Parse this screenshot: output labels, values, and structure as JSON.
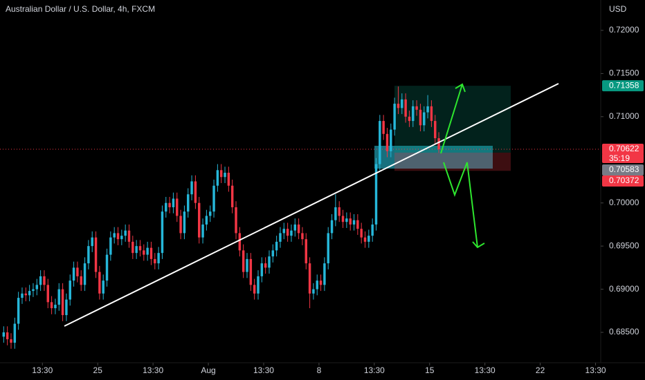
{
  "chart_data": {
    "type": "candlestick",
    "title": "Australian Dollar / U.S. Dollar, 4h, FXCM",
    "y_axis_label": "USD",
    "up_color": "#26b7d9",
    "down_color": "#f23645",
    "xlim": [
      -1,
      161.9
    ],
    "ylim": [
      0.68148,
      0.72352
    ],
    "xticks": [
      {
        "value": 10.5,
        "label": "13:30"
      },
      {
        "value": 25.5,
        "label": "25"
      },
      {
        "value": 40.5,
        "label": "13:30"
      },
      {
        "value": 55.5,
        "label": "Aug"
      },
      {
        "value": 70.5,
        "label": "13:30"
      },
      {
        "value": 85.5,
        "label": "8"
      },
      {
        "value": 100.5,
        "label": "13:30"
      },
      {
        "value": 115.5,
        "label": "15"
      },
      {
        "value": 130.5,
        "label": "13:30"
      },
      {
        "value": 145.5,
        "label": "22"
      },
      {
        "value": 160.5,
        "label": "13:30"
      }
    ],
    "yticks": [
      {
        "value": 0.72,
        "label": "0.72000"
      },
      {
        "value": 0.715,
        "label": "0.71500"
      },
      {
        "value": 0.71,
        "label": "0.71000"
      },
      {
        "value": 0.7,
        "label": "0.70000"
      },
      {
        "value": 0.695,
        "label": "0.69500"
      },
      {
        "value": 0.69,
        "label": "0.69000"
      },
      {
        "value": 0.685,
        "label": "0.68500"
      }
    ],
    "open": [
      0.6845,
      0.685,
      0.6842,
      0.6838,
      0.686,
      0.689,
      0.6895,
      0.6893,
      0.6898,
      0.69,
      0.6905,
      0.6915,
      0.6905,
      0.6885,
      0.6878,
      0.6882,
      0.69,
      0.687,
      0.6888,
      0.691,
      0.6925,
      0.6915,
      0.6905,
      0.693,
      0.695,
      0.696,
      0.692,
      0.6895,
      0.691,
      0.694,
      0.696,
      0.6965,
      0.6958,
      0.6962,
      0.6968,
      0.6955,
      0.6942,
      0.695,
      0.6945,
      0.694,
      0.6948,
      0.6935,
      0.693,
      0.6942,
      0.699,
      0.7,
      0.6995,
      0.7005,
      0.6985,
      0.6965,
      0.699,
      0.701,
      0.7025,
      0.7,
      0.696,
      0.6975,
      0.6985,
      0.699,
      0.702,
      0.7038,
      0.703,
      0.7035,
      0.702,
      0.6995,
      0.6965,
      0.6945,
      0.692,
      0.6935,
      0.6905,
      0.6895,
      0.6915,
      0.693,
      0.6925,
      0.6938,
      0.6945,
      0.6955,
      0.6965,
      0.697,
      0.6962,
      0.6968,
      0.6975,
      0.6965,
      0.6958,
      0.693,
      0.6895,
      0.69,
      0.691,
      0.6905,
      0.693,
      0.6965,
      0.698,
      0.6995,
      0.6985,
      0.6978,
      0.6982,
      0.6975,
      0.698,
      0.697,
      0.696,
      0.6955,
      0.6962,
      0.6975,
      0.7045,
      0.7095,
      0.708,
      0.706,
      0.7085,
      0.7115,
      0.711,
      0.712,
      0.71,
      0.7095,
      0.7112,
      0.7108,
      0.709,
      0.7105,
      0.7112,
      0.7095,
      0.7075
    ],
    "high": [
      0.6857,
      0.6857,
      0.6849,
      0.6867,
      0.6897,
      0.6902,
      0.6902,
      0.6905,
      0.6907,
      0.6912,
      0.6922,
      0.6922,
      0.6912,
      0.6892,
      0.6889,
      0.6907,
      0.6907,
      0.6895,
      0.6917,
      0.6932,
      0.6932,
      0.6922,
      0.6937,
      0.6957,
      0.6967,
      0.6967,
      0.6927,
      0.6917,
      0.6947,
      0.6967,
      0.6972,
      0.6972,
      0.6969,
      0.6975,
      0.6975,
      0.6962,
      0.6957,
      0.6957,
      0.6952,
      0.6955,
      0.6955,
      0.6942,
      0.6949,
      0.6997,
      0.7007,
      0.7007,
      0.7012,
      0.7012,
      0.6992,
      0.6997,
      0.7017,
      0.7032,
      0.7032,
      0.7007,
      0.6982,
      0.6992,
      0.6997,
      0.7027,
      0.7045,
      0.7045,
      0.7042,
      0.7042,
      0.7027,
      0.7002,
      0.6972,
      0.6952,
      0.6942,
      0.6942,
      0.6912,
      0.6922,
      0.6937,
      0.6937,
      0.6945,
      0.6952,
      0.6962,
      0.6972,
      0.6977,
      0.6977,
      0.6975,
      0.6982,
      0.6982,
      0.6972,
      0.6965,
      0.6937,
      0.6907,
      0.6917,
      0.6917,
      0.6937,
      0.6972,
      0.6987,
      0.701,
      0.7002,
      0.6992,
      0.6989,
      0.6989,
      0.6987,
      0.6987,
      0.6977,
      0.6967,
      0.6969,
      0.6982,
      0.7052,
      0.7102,
      0.7102,
      0.7087,
      0.7092,
      0.7122,
      0.7135,
      0.7127,
      0.7127,
      0.7107,
      0.7119,
      0.7119,
      0.7115,
      0.7112,
      0.7125,
      0.7119,
      0.7102,
      0.7082
    ],
    "low": [
      0.6838,
      0.6835,
      0.6831,
      0.6831,
      0.6853,
      0.6883,
      0.6886,
      0.6886,
      0.6891,
      0.6893,
      0.6898,
      0.6898,
      0.6878,
      0.6871,
      0.6871,
      0.6875,
      0.6863,
      0.6863,
      0.6881,
      0.6903,
      0.6908,
      0.6898,
      0.6898,
      0.6923,
      0.6943,
      0.6913,
      0.6888,
      0.6888,
      0.6903,
      0.6933,
      0.6953,
      0.6951,
      0.6951,
      0.6955,
      0.6948,
      0.6935,
      0.6935,
      0.6938,
      0.6933,
      0.6933,
      0.6928,
      0.6923,
      0.6923,
      0.6935,
      0.6983,
      0.6988,
      0.6988,
      0.6978,
      0.6958,
      0.6958,
      0.6983,
      0.7003,
      0.6993,
      0.6953,
      0.6953,
      0.6968,
      0.6978,
      0.6983,
      0.7013,
      0.7023,
      0.7023,
      0.7013,
      0.6988,
      0.6958,
      0.6938,
      0.6913,
      0.6913,
      0.6898,
      0.6888,
      0.6888,
      0.6908,
      0.6918,
      0.6918,
      0.6931,
      0.6938,
      0.6948,
      0.6958,
      0.6955,
      0.6955,
      0.6961,
      0.6958,
      0.6951,
      0.6923,
      0.6878,
      0.6888,
      0.6893,
      0.6898,
      0.6898,
      0.6923,
      0.6958,
      0.6973,
      0.6978,
      0.6971,
      0.6971,
      0.6968,
      0.6968,
      0.6963,
      0.6953,
      0.6948,
      0.6948,
      0.6955,
      0.6968,
      0.7038,
      0.7073,
      0.7053,
      0.7053,
      0.7078,
      0.7103,
      0.7103,
      0.7093,
      0.7088,
      0.7088,
      0.7101,
      0.7083,
      0.7083,
      0.7098,
      0.7088,
      0.7068,
      0.7058
    ],
    "close": [
      0.685,
      0.6842,
      0.6838,
      0.686,
      0.689,
      0.6895,
      0.6893,
      0.6898,
      0.69,
      0.6905,
      0.6915,
      0.6905,
      0.6885,
      0.6878,
      0.6882,
      0.69,
      0.687,
      0.6888,
      0.691,
      0.6925,
      0.6915,
      0.6905,
      0.693,
      0.695,
      0.696,
      0.692,
      0.6895,
      0.691,
      0.694,
      0.696,
      0.6965,
      0.6958,
      0.6962,
      0.6968,
      0.6955,
      0.6942,
      0.695,
      0.6945,
      0.694,
      0.6948,
      0.6935,
      0.693,
      0.6942,
      0.699,
      0.7,
      0.6995,
      0.7005,
      0.6985,
      0.6965,
      0.699,
      0.701,
      0.7025,
      0.7,
      0.696,
      0.6975,
      0.6985,
      0.699,
      0.702,
      0.7038,
      0.703,
      0.7035,
      0.702,
      0.6995,
      0.6965,
      0.6945,
      0.692,
      0.6935,
      0.6905,
      0.6895,
      0.6915,
      0.693,
      0.6925,
      0.6938,
      0.6945,
      0.6955,
      0.6965,
      0.697,
      0.6962,
      0.6968,
      0.6975,
      0.6965,
      0.6958,
      0.693,
      0.6895,
      0.69,
      0.691,
      0.6905,
      0.693,
      0.6965,
      0.698,
      0.6995,
      0.6985,
      0.6978,
      0.6982,
      0.6975,
      0.698,
      0.697,
      0.696,
      0.6955,
      0.6962,
      0.6975,
      0.7045,
      0.7095,
      0.708,
      0.706,
      0.7085,
      0.7115,
      0.711,
      0.712,
      0.71,
      0.7095,
      0.7112,
      0.7108,
      0.709,
      0.7105,
      0.7112,
      0.7095,
      0.7075,
      0.70622
    ],
    "current_price": 0.70622,
    "countdown": "35:19",
    "position": {
      "target": 0.71358,
      "entry": 0.70583,
      "stop": 0.70372
    }
  }
}
